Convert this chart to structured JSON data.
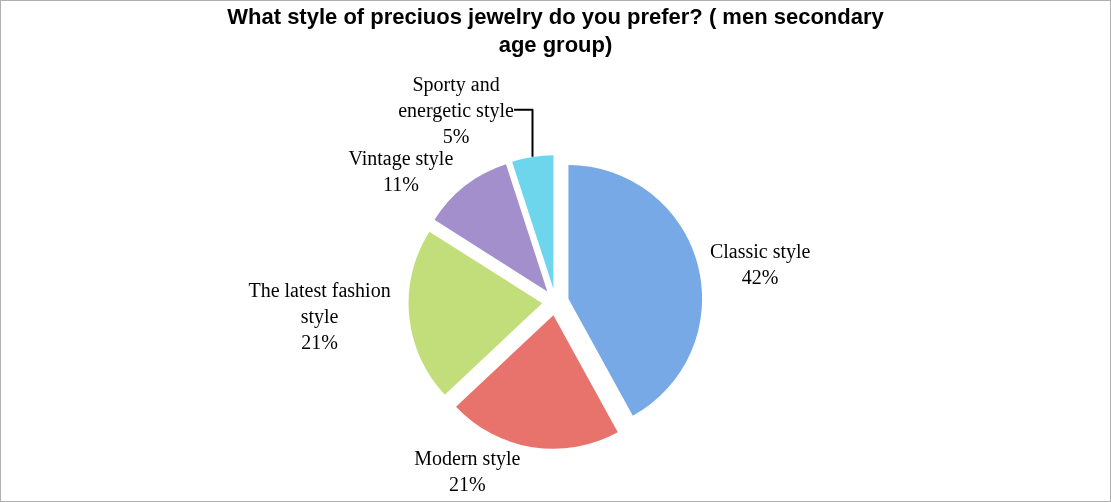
{
  "chart_data": {
    "type": "pie",
    "title": "What style of preciuos jewelry do you prefer? ( men secondary age group)",
    "categories": [
      "Classic style",
      "Modern style",
      "The latest fashion style",
      "Vintage style",
      "Sporty and energetic style"
    ],
    "values": [
      42,
      21,
      21,
      11,
      5
    ],
    "value_labels": [
      "42%",
      "21%",
      "21%",
      "11%",
      "5%"
    ],
    "colors": [
      "#77a9e6",
      "#e8736c",
      "#c2de7a",
      "#a38fcb",
      "#6dd6ec"
    ],
    "legend": false
  }
}
